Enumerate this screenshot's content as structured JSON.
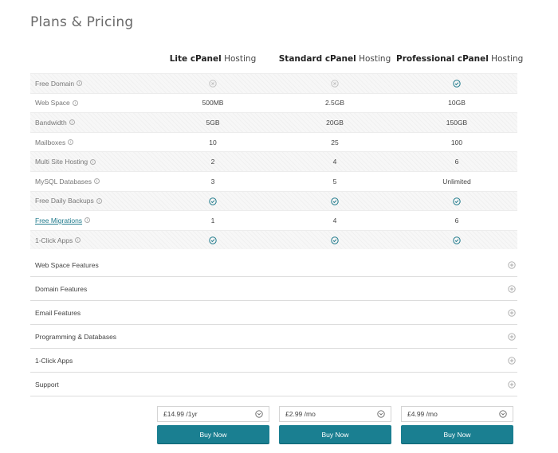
{
  "title": "Plans & Pricing",
  "plans": [
    {
      "bold": "Lite cPanel",
      "light": "Hosting"
    },
    {
      "bold": "Standard cPanel",
      "light": "Hosting"
    },
    {
      "bold": "Professional cPanel",
      "light": "Hosting"
    }
  ],
  "rows": [
    {
      "label": "Free Domain",
      "values": [
        "cross",
        "cross",
        "check"
      ]
    },
    {
      "label": "Web Space",
      "values": [
        "500MB",
        "2.5GB",
        "10GB"
      ]
    },
    {
      "label": "Bandwidth",
      "values": [
        "5GB",
        "20GB",
        "150GB"
      ]
    },
    {
      "label": "Mailboxes",
      "values": [
        "10",
        "25",
        "100"
      ]
    },
    {
      "label": "Multi Site Hosting",
      "values": [
        "2",
        "4",
        "6"
      ]
    },
    {
      "label": "MySQL Databases",
      "values": [
        "3",
        "5",
        "Unlimited"
      ]
    },
    {
      "label": "Free Daily Backups",
      "values": [
        "check",
        "check",
        "check"
      ]
    },
    {
      "label": "Free Migrations",
      "link": true,
      "values": [
        "1",
        "4",
        "6"
      ]
    },
    {
      "label": "1-Click Apps",
      "values": [
        "check",
        "check",
        "check"
      ]
    }
  ],
  "sections": [
    "Web Space Features",
    "Domain Features",
    "Email Features",
    "Programming & Databases",
    "1-Click Apps",
    "Support"
  ],
  "prices": [
    "£14.99 /1yr",
    "£2.99 /mo",
    "£4.99 /mo"
  ],
  "buy_label": "Buy Now",
  "colors": {
    "accent": "#1a7f91",
    "check": "#1f7a8c",
    "cross": "#bdbdbd"
  }
}
